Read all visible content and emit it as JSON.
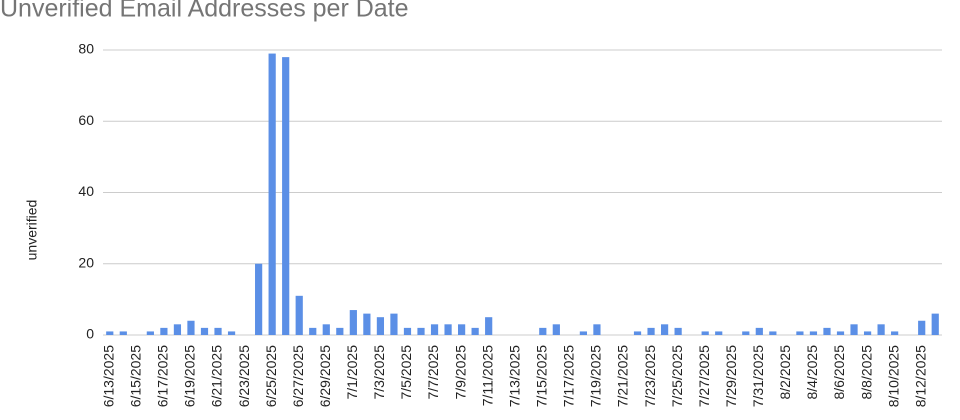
{
  "chart_data": {
    "type": "bar",
    "title": "Unverified Email Addresses per Date",
    "y_label": "unverified",
    "categories": [
      "6/13/2025",
      null,
      "6/15/2025",
      null,
      "6/17/2025",
      null,
      "6/19/2025",
      null,
      "6/21/2025",
      null,
      "6/23/2025",
      null,
      "6/25/2025",
      null,
      "6/27/2025",
      null,
      "6/29/2025",
      null,
      "7/1/2025",
      null,
      "7/3/2025",
      null,
      "7/5/2025",
      null,
      "7/7/2025",
      null,
      "7/9/2025",
      null,
      "7/11/2025",
      null,
      "7/13/2025",
      null,
      "7/15/2025",
      null,
      "7/17/2025",
      null,
      "7/19/2025",
      null,
      "7/21/2025",
      null,
      "7/23/2025",
      null,
      "7/25/2025",
      null,
      "7/27/2025",
      null,
      "7/29/2025",
      null,
      "7/31/2025",
      null,
      "8/2/2025",
      null,
      "8/4/2025",
      null,
      "8/6/2025",
      null,
      "8/8/2025",
      null,
      "8/10/2025",
      null,
      "8/12/2025",
      null
    ],
    "values": [
      1,
      1,
      0,
      1,
      2,
      3,
      4,
      2,
      2,
      1,
      0,
      20,
      79,
      78,
      11,
      2,
      3,
      2,
      7,
      6,
      5,
      6,
      2,
      2,
      3,
      3,
      3,
      2,
      5,
      0,
      0,
      0,
      2,
      3,
      0,
      1,
      3,
      0,
      0,
      1,
      2,
      3,
      2,
      0,
      1,
      1,
      0,
      1,
      2,
      1,
      0,
      1,
      1,
      2,
      1,
      3,
      1,
      3,
      1,
      0,
      4,
      6
    ],
    "color": "#5b8fe6",
    "ylim": [
      0,
      80
    ],
    "yticks": [
      0,
      20,
      40,
      60,
      80
    ],
    "grid": true
  }
}
